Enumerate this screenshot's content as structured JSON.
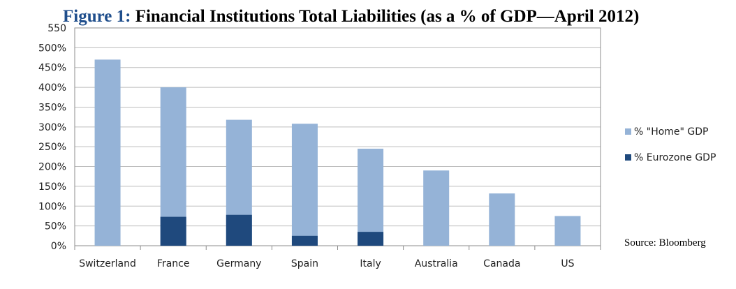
{
  "title": {
    "prefix": "Figure 1:",
    "text": "Financial Institutions Total Liabilities (as a % of GDP—April 2012)"
  },
  "source": "Source: Bloomberg",
  "colors": {
    "home": "#95b3d7",
    "eurozone": "#1f497d",
    "gridline": "#bdbdbd",
    "frame": "#8c8c8c"
  },
  "chart_data": {
    "type": "bar",
    "stacking": "overlap",
    "categories": [
      "Switzerland",
      "France",
      "Germany",
      "Spain",
      "Italy",
      "Australia",
      "Canada",
      "US"
    ],
    "series": [
      {
        "name": "% \"Home\" GDP",
        "values": [
          470,
          400,
          318,
          308,
          245,
          190,
          132,
          75
        ]
      },
      {
        "name": "% Eurozone GDP",
        "values": [
          0,
          73,
          78,
          25,
          35,
          0,
          0,
          0
        ]
      }
    ],
    "y_tick_labels": [
      "0%",
      "50%",
      "100%",
      "150%",
      "200%",
      "250%",
      "300%",
      "350%",
      "400%",
      "450%",
      "500%",
      "550"
    ],
    "ylim": [
      0,
      550
    ],
    "y_tick_step": 50,
    "grid": true,
    "legend_position": "right"
  }
}
